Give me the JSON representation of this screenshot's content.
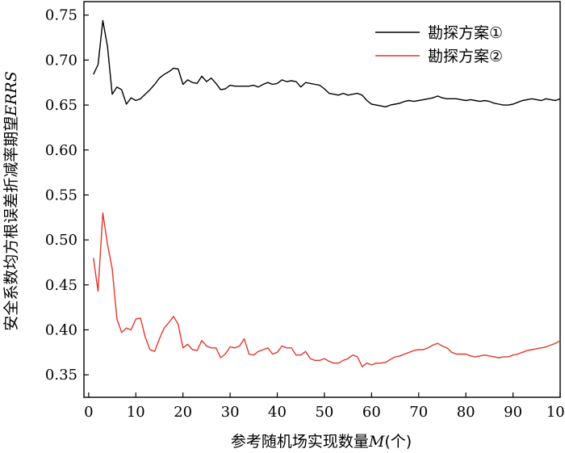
{
  "chart_data": {
    "type": "line",
    "xlabel_main": "参考随机场实现数量",
    "xlabel_var": "M",
    "xlabel_unit": "(个)",
    "ylabel_main": "安全系数均方根误差折减率期望",
    "ylabel_var": "ERRS",
    "xlim": [
      -1,
      100
    ],
    "ylim": [
      0.325,
      0.765
    ],
    "x_ticks": [
      0,
      10,
      20,
      30,
      40,
      50,
      60,
      70,
      80,
      90,
      100
    ],
    "y_ticks": [
      0.35,
      0.4,
      0.45,
      0.5,
      0.55,
      0.6,
      0.65,
      0.7,
      0.75
    ],
    "x_tick_labels": [
      "0",
      "10",
      "20",
      "30",
      "40",
      "50",
      "60",
      "70",
      "80",
      "90",
      "100"
    ],
    "y_tick_labels": [
      "0.35",
      "0.40",
      "0.45",
      "0.50",
      "0.55",
      "0.60",
      "0.65",
      "0.70",
      "0.75"
    ],
    "legend_position": "top-right",
    "grid": false,
    "series": [
      {
        "name": "勘探方案①",
        "color": "#000000",
        "x": [
          1,
          2,
          3,
          4,
          5,
          6,
          7,
          8,
          9,
          10,
          11,
          12,
          13,
          14,
          15,
          16,
          17,
          18,
          19,
          20,
          21,
          22,
          23,
          24,
          25,
          26,
          27,
          28,
          29,
          30,
          31,
          32,
          33,
          34,
          35,
          36,
          37,
          38,
          39,
          40,
          41,
          42,
          43,
          44,
          45,
          46,
          47,
          48,
          49,
          50,
          51,
          52,
          53,
          54,
          55,
          56,
          57,
          58,
          59,
          60,
          61,
          62,
          63,
          64,
          65,
          66,
          67,
          68,
          69,
          70,
          71,
          72,
          73,
          74,
          75,
          76,
          77,
          78,
          79,
          80,
          81,
          82,
          83,
          84,
          85,
          86,
          87,
          88,
          89,
          90,
          91,
          92,
          93,
          94,
          95,
          96,
          97,
          98,
          99,
          100
        ],
        "y": [
          0.684,
          0.695,
          0.744,
          0.715,
          0.662,
          0.67,
          0.667,
          0.651,
          0.658,
          0.655,
          0.657,
          0.662,
          0.667,
          0.673,
          0.68,
          0.684,
          0.687,
          0.691,
          0.69,
          0.673,
          0.678,
          0.675,
          0.674,
          0.682,
          0.676,
          0.68,
          0.674,
          0.667,
          0.668,
          0.672,
          0.671,
          0.671,
          0.671,
          0.671,
          0.672,
          0.67,
          0.673,
          0.675,
          0.673,
          0.674,
          0.678,
          0.676,
          0.677,
          0.676,
          0.67,
          0.675,
          0.674,
          0.673,
          0.672,
          0.668,
          0.663,
          0.662,
          0.661,
          0.663,
          0.661,
          0.662,
          0.663,
          0.661,
          0.655,
          0.651,
          0.65,
          0.649,
          0.648,
          0.65,
          0.651,
          0.652,
          0.654,
          0.655,
          0.654,
          0.655,
          0.656,
          0.657,
          0.658,
          0.66,
          0.658,
          0.657,
          0.657,
          0.657,
          0.656,
          0.655,
          0.656,
          0.655,
          0.654,
          0.655,
          0.654,
          0.652,
          0.651,
          0.65,
          0.65,
          0.651,
          0.653,
          0.655,
          0.656,
          0.657,
          0.656,
          0.655,
          0.657,
          0.656,
          0.655,
          0.657
        ]
      },
      {
        "name": "勘探方案②",
        "color": "#e2382b",
        "x": [
          1,
          2,
          3,
          4,
          5,
          6,
          7,
          8,
          9,
          10,
          11,
          12,
          13,
          14,
          15,
          16,
          17,
          18,
          19,
          20,
          21,
          22,
          23,
          24,
          25,
          26,
          27,
          28,
          29,
          30,
          31,
          32,
          33,
          34,
          35,
          36,
          37,
          38,
          39,
          40,
          41,
          42,
          43,
          44,
          45,
          46,
          47,
          48,
          49,
          50,
          51,
          52,
          53,
          54,
          55,
          56,
          57,
          58,
          59,
          60,
          61,
          62,
          63,
          64,
          65,
          66,
          67,
          68,
          69,
          70,
          71,
          72,
          73,
          74,
          75,
          76,
          77,
          78,
          79,
          80,
          81,
          82,
          83,
          84,
          85,
          86,
          87,
          88,
          89,
          90,
          91,
          92,
          93,
          94,
          95,
          96,
          97,
          98,
          99,
          100
        ],
        "y": [
          0.48,
          0.443,
          0.53,
          0.495,
          0.468,
          0.412,
          0.397,
          0.402,
          0.4,
          0.412,
          0.413,
          0.392,
          0.378,
          0.376,
          0.39,
          0.402,
          0.408,
          0.415,
          0.406,
          0.38,
          0.384,
          0.378,
          0.377,
          0.388,
          0.382,
          0.38,
          0.38,
          0.369,
          0.373,
          0.381,
          0.38,
          0.382,
          0.39,
          0.373,
          0.372,
          0.376,
          0.378,
          0.38,
          0.373,
          0.375,
          0.382,
          0.38,
          0.38,
          0.372,
          0.372,
          0.376,
          0.368,
          0.366,
          0.366,
          0.368,
          0.365,
          0.363,
          0.363,
          0.366,
          0.368,
          0.372,
          0.37,
          0.359,
          0.363,
          0.361,
          0.363,
          0.363,
          0.364,
          0.367,
          0.37,
          0.371,
          0.373,
          0.375,
          0.377,
          0.378,
          0.378,
          0.38,
          0.383,
          0.385,
          0.382,
          0.38,
          0.375,
          0.373,
          0.373,
          0.373,
          0.371,
          0.37,
          0.371,
          0.372,
          0.371,
          0.37,
          0.369,
          0.37,
          0.37,
          0.372,
          0.373,
          0.375,
          0.377,
          0.378,
          0.379,
          0.38,
          0.381,
          0.383,
          0.385,
          0.388
        ]
      }
    ]
  }
}
